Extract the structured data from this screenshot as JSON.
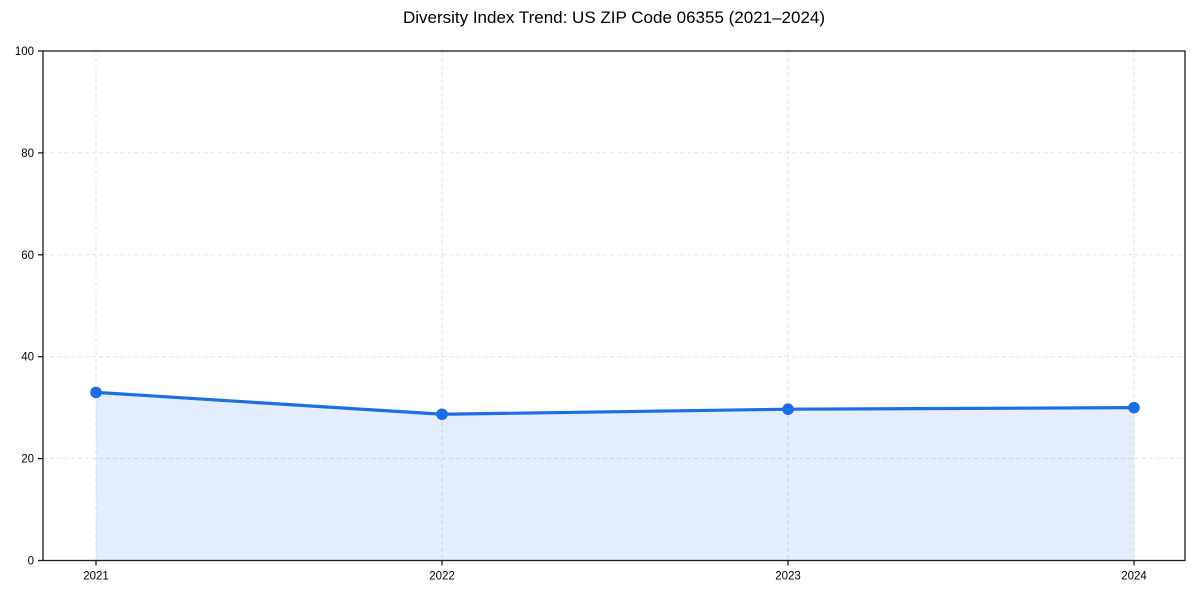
{
  "title": "Diversity Index Trend: US ZIP Code 06355 (2021–2024)",
  "chart_data": {
    "type": "line",
    "title": "Diversity Index Trend: US ZIP Code 06355 (2021–2024)",
    "categories": [
      "2021",
      "2022",
      "2023",
      "2024"
    ],
    "series": [
      {
        "name": "Diversity Index",
        "values": [
          33.0,
          28.7,
          29.7,
          30.0
        ]
      }
    ],
    "xlabel": "",
    "ylabel": "",
    "ylim": [
      0,
      100
    ],
    "yticks": [
      0,
      20,
      40,
      60,
      80,
      100
    ],
    "grid": "dashed-both-axes",
    "legend": "none",
    "area_fill": true,
    "markers": "circle",
    "colors": {
      "line": "#1b6ee3",
      "marker": "#1b6ee3",
      "area_fill": "rgba(27,110,227,0.12)",
      "grid": "#e2e2e2",
      "axis": "#1a1a1a",
      "text": "#000000",
      "background": "#ffffff"
    }
  }
}
